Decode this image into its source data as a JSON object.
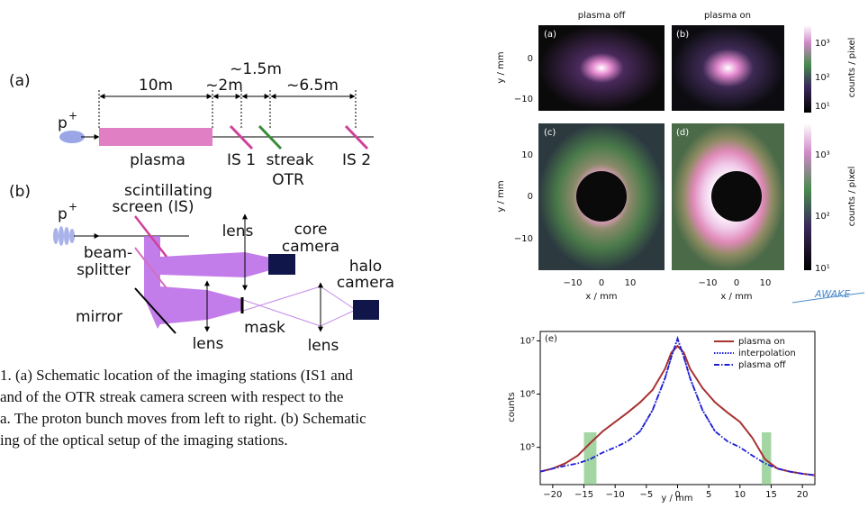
{
  "schematic": {
    "a": {
      "label": "(a)",
      "proton": "p",
      "proton_charge": "+",
      "dims": [
        "10m",
        "~2m",
        "~1.5m",
        "~6.5m"
      ],
      "plasma": "plasma",
      "is1": "IS 1",
      "streak": [
        "streak",
        "OTR"
      ],
      "is2": "IS 2"
    },
    "b": {
      "label": "(b)",
      "proton": "p",
      "proton_charge": "+",
      "screen": [
        "scintillating",
        "screen (IS)"
      ],
      "splitter": [
        "beam-",
        "splitter"
      ],
      "mirror": "mirror",
      "lens_top": "lens",
      "core_camera": [
        "core",
        "camera"
      ],
      "lens_left": "lens",
      "mask": "mask",
      "lens_right": "lens",
      "halo_camera": [
        "halo",
        "camera"
      ]
    }
  },
  "caption": [
    "1.    (a) Schematic location of the imaging stations (IS1 and",
    "and of the OTR streak camera screen with respect to the",
    "a. The proton bunch moves from left to right. (b) Schematic",
    "ing of the optical setup of the imaging stations."
  ],
  "images": {
    "col_titles": [
      "plasma off",
      "plasma on"
    ],
    "panels": [
      "(a)",
      "(b)",
      "(c)",
      "(d)"
    ],
    "y_label": "y / mm",
    "x_label": "x / mm",
    "row1_yticks": [
      "0",
      "−10"
    ],
    "row2_yticks": [
      "10",
      "0",
      "−10"
    ],
    "xticks": [
      "−10",
      "0",
      "10"
    ],
    "cbar1_ticks": [
      "10³",
      "10²",
      "10¹"
    ],
    "cbar2_ticks": [
      "10³",
      "10²",
      "10¹"
    ],
    "cbar_label": "counts / pixel",
    "logo": "AWAKE"
  },
  "chart_data": {
    "type": "line",
    "annotation": "(e)",
    "x_label": "y / mm",
    "y_label": "counts",
    "log_y": true,
    "legend": "upper right",
    "x": [
      -22,
      -20,
      -18,
      -16,
      -14,
      -12,
      -10,
      -8,
      -6,
      -4,
      -2,
      -1,
      0,
      1,
      2,
      4,
      6,
      8,
      10,
      12,
      14,
      16,
      18,
      20,
      22
    ],
    "series": [
      {
        "name": "plasma on",
        "color": "#a83232",
        "dash": "solid",
        "values": [
          35000,
          40000,
          50000,
          70000,
          120000,
          200000,
          300000,
          450000,
          700000,
          1200000,
          3000000,
          6000000,
          8000000,
          6000000,
          3000000,
          1300000,
          700000,
          450000,
          300000,
          150000,
          60000,
          40000,
          35000,
          32000,
          30000
        ]
      },
      {
        "name": "interpolation",
        "color": "#1f1fd6",
        "dash": "dotted",
        "values": [
          null,
          null,
          null,
          null,
          null,
          null,
          null,
          null,
          200000,
          500000,
          2000000,
          5000000,
          11000000,
          5000000,
          2000000,
          500000,
          200000,
          null,
          null,
          null,
          null,
          null,
          null,
          null,
          null
        ]
      },
      {
        "name": "plasma off",
        "color": "#1f1fd6",
        "dash": "dashdot",
        "values": [
          35000,
          40000,
          45000,
          50000,
          60000,
          80000,
          100000,
          130000,
          200000,
          500000,
          2000000,
          5000000,
          11000000,
          5000000,
          2000000,
          500000,
          200000,
          130000,
          100000,
          70000,
          50000,
          40000,
          35000,
          32000,
          30000
        ]
      }
    ],
    "xlim": [
      -22,
      22
    ],
    "ylim": [
      20000,
      15000000
    ],
    "xticks": [
      {
        "value": -20,
        "label": "−20"
      },
      {
        "value": -15,
        "label": "−15"
      },
      {
        "value": -10,
        "label": "−10"
      },
      {
        "value": -5,
        "label": "−5"
      },
      0,
      5,
      10,
      15,
      20
    ],
    "yticks": [
      {
        "value": 100000,
        "label": "10⁵"
      },
      {
        "value": 1000000,
        "label": "10⁶"
      },
      {
        "value": 10000000,
        "label": "10⁷"
      }
    ]
  }
}
